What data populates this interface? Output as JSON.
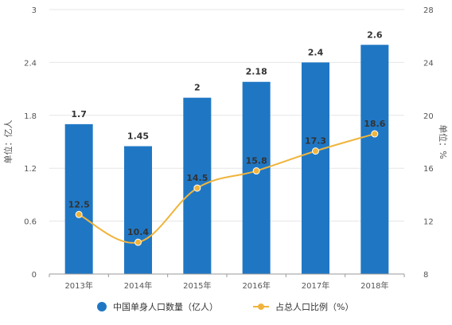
{
  "chart_data": {
    "type": "bar",
    "categories": [
      "2013年",
      "2014年",
      "2015年",
      "2016年",
      "2017年",
      "2018年"
    ],
    "series": [
      {
        "name": "中国单身人口数量（亿人）",
        "type": "bar",
        "axis": "left",
        "color": "#1f77c4",
        "values": [
          1.7,
          1.45,
          2,
          2.18,
          2.4,
          2.6
        ],
        "labels": [
          "1.7",
          "1.45",
          "2",
          "2.18",
          "2.4",
          "2.6"
        ]
      },
      {
        "name": "占总人口比例（%）",
        "type": "line",
        "axis": "right",
        "color": "#f0b43c",
        "values": [
          12.5,
          10.4,
          14.5,
          15.8,
          17.3,
          18.6
        ],
        "labels": [
          "12.5",
          "10.4",
          "14.5",
          "15.8",
          "17.3",
          "18.6"
        ]
      }
    ],
    "y_left": {
      "label": "单位：亿人",
      "ylim": [
        0,
        3
      ],
      "ticks": [
        "0",
        "0.6",
        "1.2",
        "1.8",
        "2.4",
        "3"
      ]
    },
    "y_right": {
      "label": "单位：%",
      "ylim": [
        8,
        28
      ],
      "ticks": [
        "8",
        "12",
        "16",
        "20",
        "24",
        "28"
      ]
    },
    "grid": true,
    "legend": "bottom"
  }
}
